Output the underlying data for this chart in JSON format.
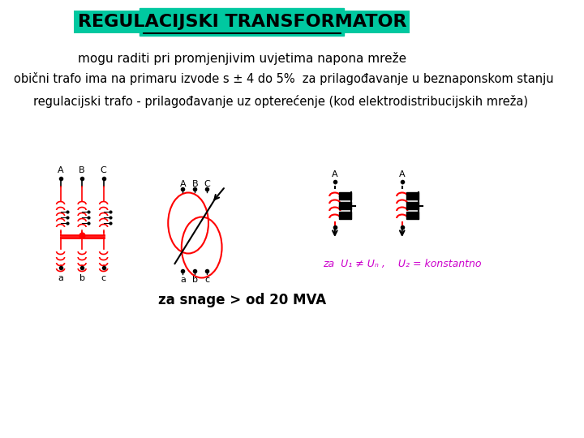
{
  "title": "REGULACIJSKI TRANSFORMATOR",
  "title_bg": "#00C8A0",
  "title_color": "#000000",
  "title_fontsize": 16,
  "line1": "mogu raditi pri promjenjivim uvjetima napona mreže",
  "line2": "obični trafo ima na primaru izvode s ± 4 do 5%  za prilagođavanje u beznaponskom stanju",
  "line3": "regulacijski trafo - prilagođavanje uz opterećenje (kod elektrodistribucijskih mreža)",
  "line4": "za snage > od 20 MVA",
  "bg_color": "#ffffff",
  "text_color": "#000000",
  "diagram_note": "za  U₁ ≠ Uₙ ,    U₂ = konstantno",
  "diagram_note_color": "#cc00cc"
}
